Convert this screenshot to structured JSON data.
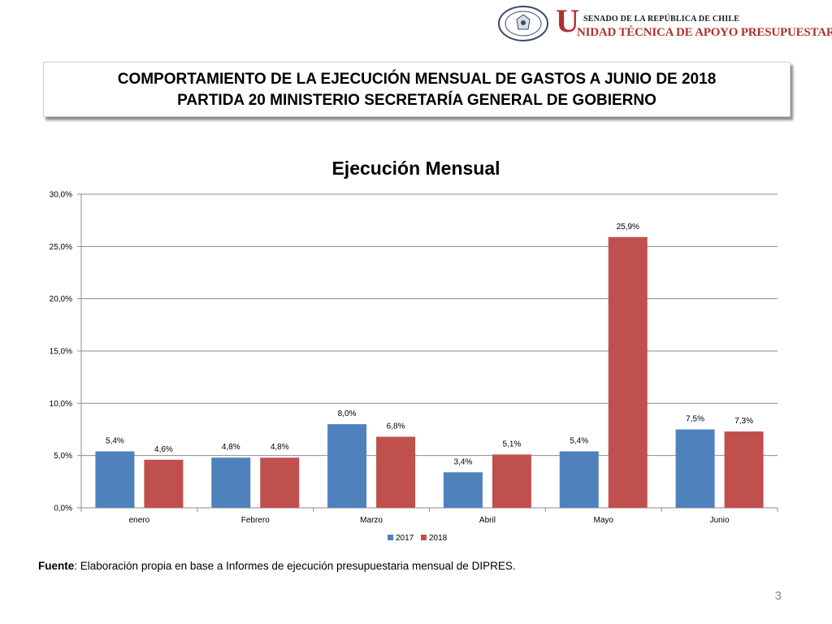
{
  "header": {
    "seal_text_top": "REPÚBLICA DE CHILE",
    "seal_text_bottom": "SENADO",
    "org_small": "SENADO DE LA REPÚBLICA DE CHILE",
    "org_initial": "U",
    "org_rest": "NIDAD TÉCNICA DE APOYO PRESUPUESTARIO"
  },
  "title": {
    "line1": "COMPORTAMIENTO DE LA EJECUCIÓN MENSUAL DE GASTOS A JUNIO DE 2018",
    "line2": "PARTIDA 20 MINISTERIO SECRETARÍA GENERAL DE GOBIERNO"
  },
  "chart_data": {
    "type": "bar",
    "title": "Ejecución Mensual",
    "categories": [
      "enero",
      "Febrero",
      "Marzo",
      "Abril",
      "Mayo",
      "Junio"
    ],
    "series": [
      {
        "name": "2017",
        "color": "#4f81bd",
        "values": [
          5.4,
          4.8,
          8.0,
          3.4,
          5.4,
          7.5
        ],
        "labels": [
          "5,4%",
          "4,8%",
          "8,0%",
          "3,4%",
          "5,4%",
          "7,5%"
        ]
      },
      {
        "name": "2018",
        "color": "#c0504d",
        "values": [
          4.6,
          4.8,
          6.8,
          5.1,
          25.9,
          7.3
        ],
        "labels": [
          "4,6%",
          "4,8%",
          "6,8%",
          "5,1%",
          "25,9%",
          "7,3%"
        ]
      }
    ],
    "ylim": [
      0,
      30
    ],
    "yticks": [
      "0,0%",
      "5,0%",
      "10,0%",
      "15,0%",
      "20,0%",
      "25,0%",
      "30,0%"
    ],
    "grid": true,
    "legend": "bottom"
  },
  "footer": {
    "source_label": "Fuente",
    "source_text": ": Elaboración propia en base  a Informes de ejecución presupuestaria mensual de DIPRES.",
    "page_number": "3"
  }
}
